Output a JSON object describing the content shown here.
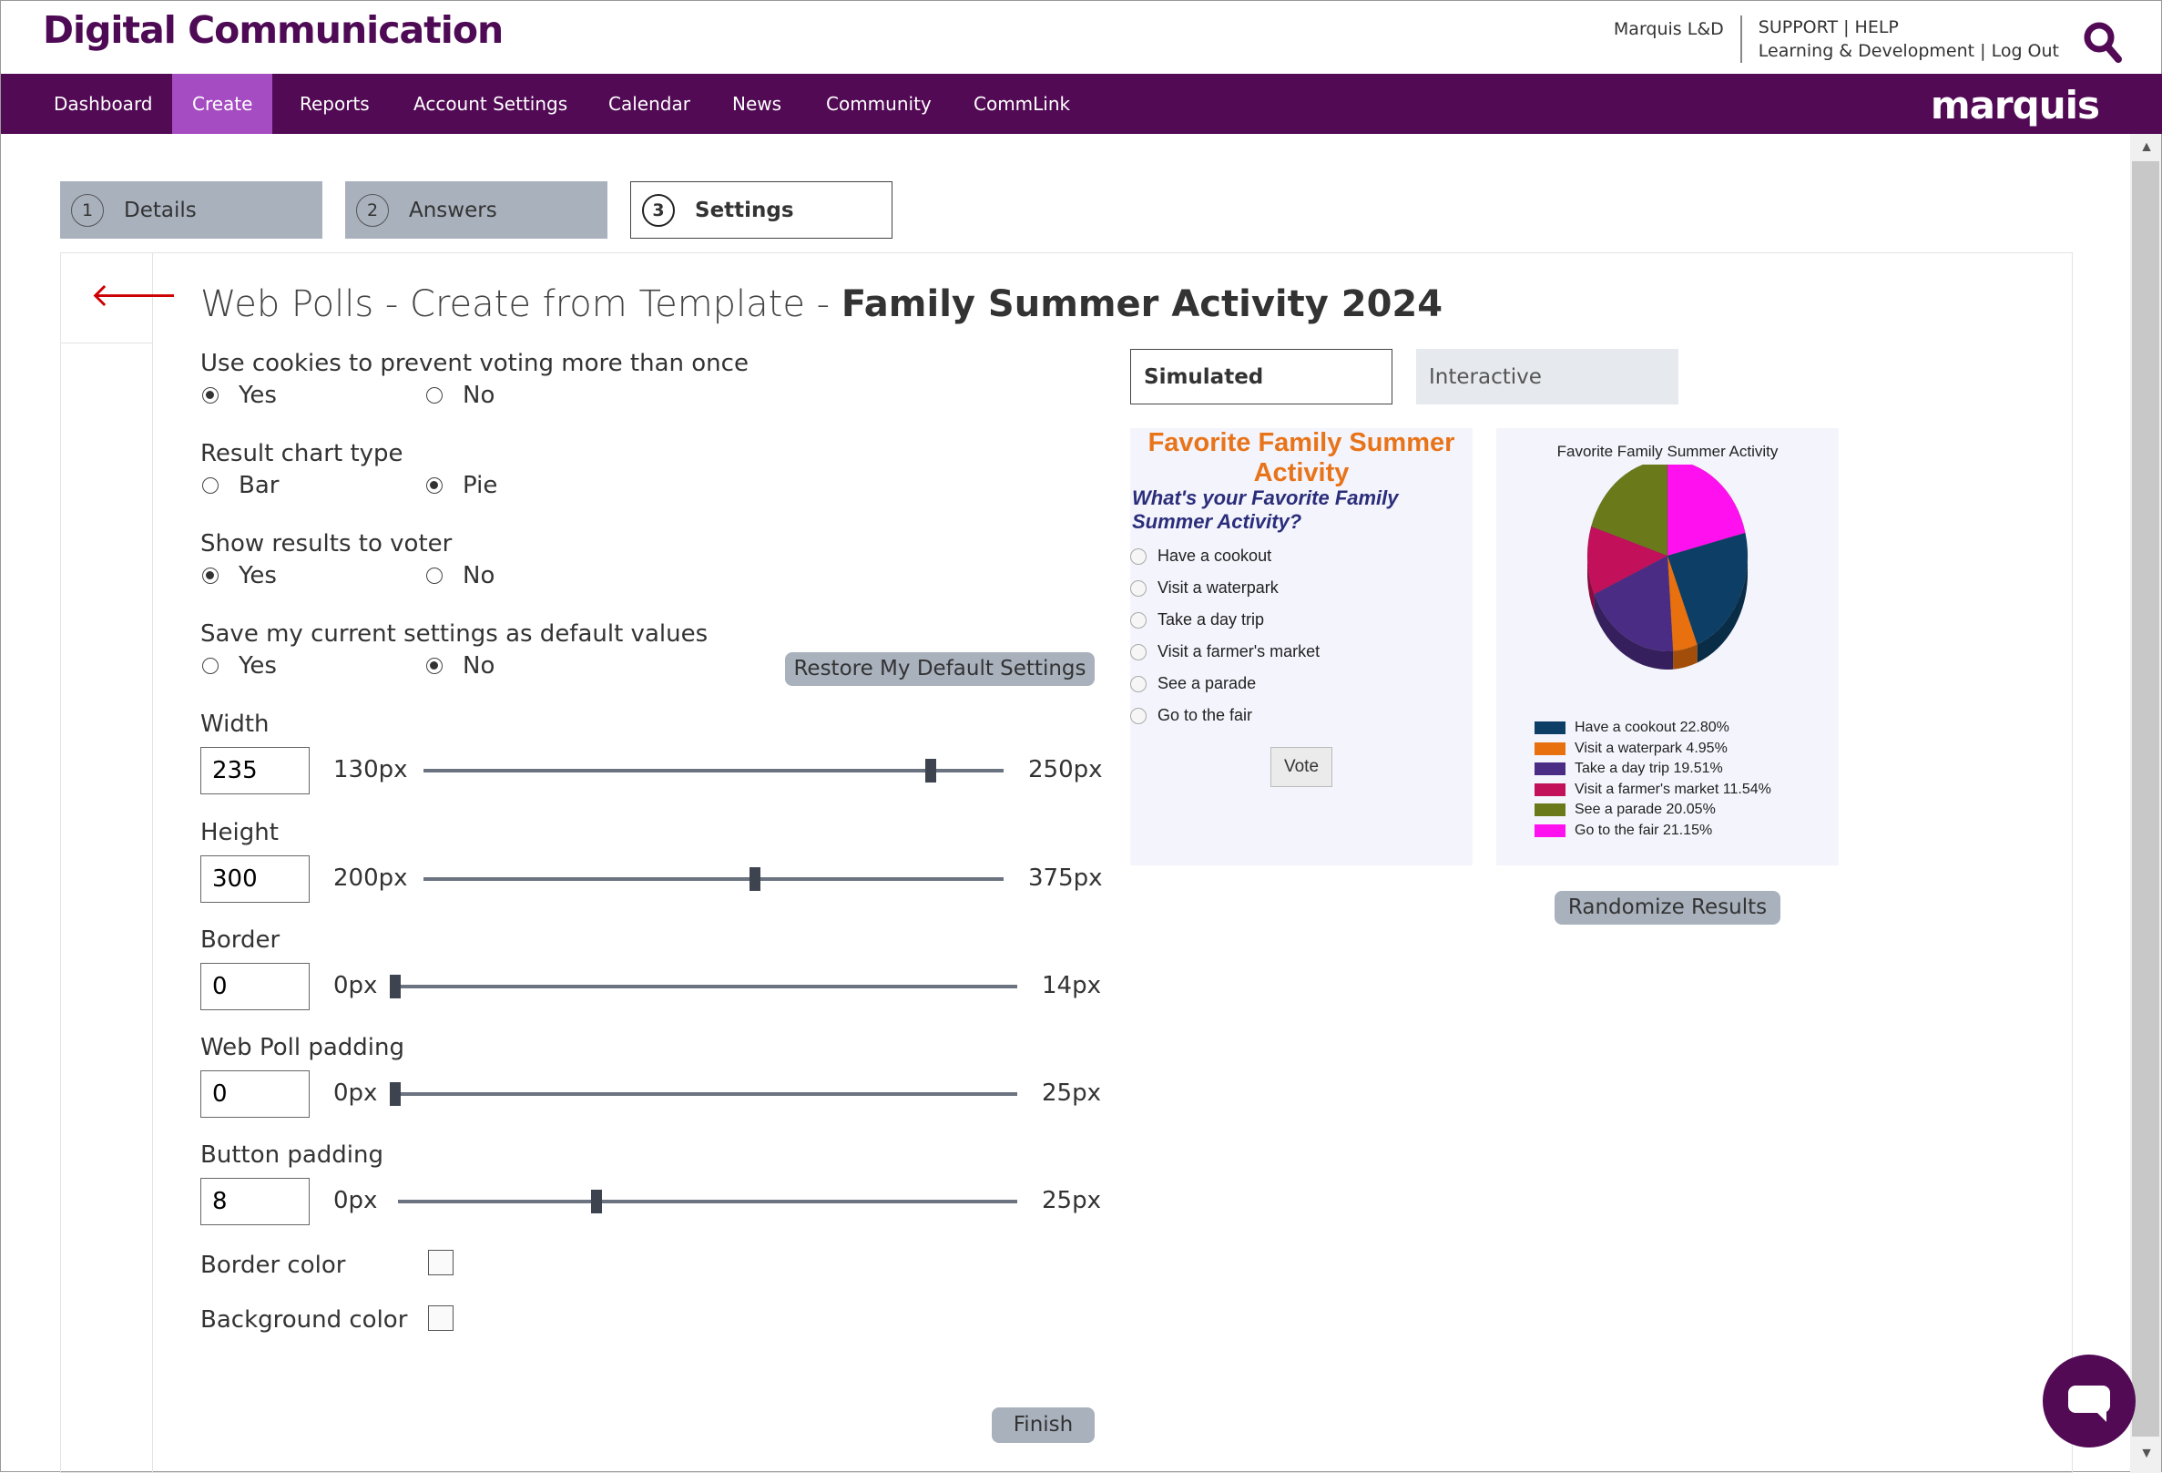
{
  "header": {
    "brand": "Digital Communication",
    "user": "Marquis L&D",
    "support": "SUPPORT",
    "help": "HELP",
    "org": "Learning & Development",
    "logout": "Log Out",
    "nav_logo": "marquis"
  },
  "nav": [
    {
      "label": "Dashboard",
      "active": false
    },
    {
      "label": "Create",
      "active": true
    },
    {
      "label": "Reports",
      "active": false
    },
    {
      "label": "Account Settings",
      "active": false
    },
    {
      "label": "Calendar",
      "active": false
    },
    {
      "label": "News",
      "active": false
    },
    {
      "label": "Community",
      "active": false
    },
    {
      "label": "CommLink",
      "active": false
    }
  ],
  "steps": [
    {
      "num": "1",
      "label": "Details"
    },
    {
      "num": "2",
      "label": "Answers"
    },
    {
      "num": "3",
      "label": "Settings"
    }
  ],
  "title": {
    "prefix": "Web Polls - Create from Template - ",
    "name": "Family Summer Activity 2024"
  },
  "settings": {
    "cookies": {
      "label": "Use cookies to prevent voting more than once",
      "opt1": "Yes",
      "opt2": "No",
      "selected": "Yes"
    },
    "chart_type": {
      "label": "Result chart type",
      "opt1": "Bar",
      "opt2": "Pie",
      "selected": "Pie"
    },
    "show_results": {
      "label": "Show results to voter",
      "opt1": "Yes",
      "opt2": "No",
      "selected": "Yes"
    },
    "save_defaults": {
      "label": "Save my current settings as default values",
      "opt1": "Yes",
      "opt2": "No",
      "selected": "No"
    },
    "restore_label": "Restore My Default Settings",
    "width": {
      "label": "Width",
      "value": "235",
      "min": "130px",
      "max": "250px",
      "fraction": 0.875
    },
    "height": {
      "label": "Height",
      "value": "300",
      "min": "200px",
      "max": "375px",
      "fraction": 0.571
    },
    "border": {
      "label": "Border",
      "value": "0",
      "min": "0px",
      "max": "14px",
      "fraction": 0
    },
    "poll_padding": {
      "label": "Web Poll padding",
      "value": "0",
      "min": "0px",
      "max": "25px",
      "fraction": 0
    },
    "button_padding": {
      "label": "Button padding",
      "value": "8",
      "min": "0px",
      "max": "25px",
      "fraction": 0.32
    },
    "border_color": "Border color",
    "background_color": "Background color",
    "finish_label": "Finish"
  },
  "preview": {
    "tab_simulated": "Simulated",
    "tab_interactive": "Interactive",
    "poll_title": "Favorite Family Summer Activity",
    "poll_question": "What's your Favorite Family Summer Activity?",
    "options": [
      "Have a cookout",
      "Visit a waterpark",
      "Take a day trip",
      "Visit a farmer's market",
      "See a parade",
      "Go to the fair"
    ],
    "vote_label": "Vote",
    "randomize_label": "Randomize Results"
  },
  "chart_data": {
    "type": "pie",
    "title": "Favorite Family Summer Activity",
    "slices": [
      {
        "label": "Have a cookout",
        "value": 22.8,
        "legend": "Have a cookout 22.80%",
        "color": "#0d3f66"
      },
      {
        "label": "Visit a waterpark",
        "value": 4.95,
        "legend": "Visit a waterpark 4.95%",
        "color": "#e8700e"
      },
      {
        "label": "Take a day trip",
        "value": 19.51,
        "legend": "Take a day trip 19.51%",
        "color": "#4b2c84"
      },
      {
        "label": "Visit a farmer's market",
        "value": 11.54,
        "legend": "Visit a farmer's market 11.54%",
        "color": "#c2105a"
      },
      {
        "label": "See a parade",
        "value": 20.05,
        "legend": "See a parade 20.05%",
        "color": "#6a7a1a"
      },
      {
        "label": "Go to the fair",
        "value": 21.15,
        "legend": "Go to the fair 21.15%",
        "color": "#ff10ee"
      }
    ],
    "legend_position": "bottom"
  },
  "icons": {
    "search": "search-icon",
    "back": "back-arrow-icon",
    "chat": "chat-icon"
  },
  "colors": {
    "brand_purple": "#520a55",
    "nav_active": "#a64cc3",
    "poll_title": "#e8741a",
    "poll_question": "#2a2d7a"
  }
}
